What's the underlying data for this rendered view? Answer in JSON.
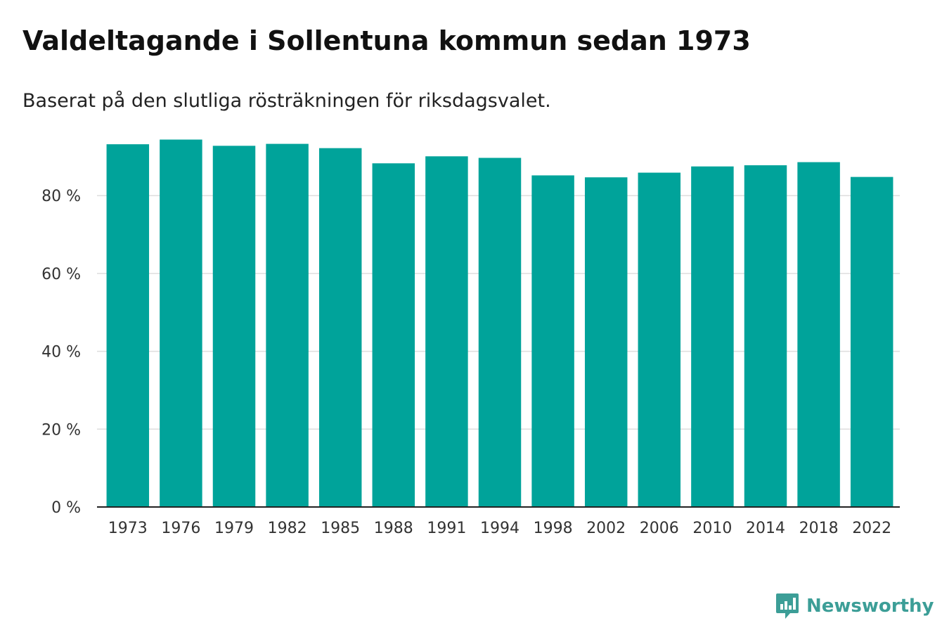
{
  "header": {
    "title": "Valdeltagande i Sollentuna kommun sedan 1973",
    "subtitle": "Baserat på den slutliga rösträkningen för riksdagsvalet."
  },
  "brand": {
    "name": "Newsworthy",
    "color": "#3c9e97",
    "icon": "newsworthy-logo-icon"
  },
  "chart_data": {
    "type": "bar",
    "title": "Valdeltagande i Sollentuna kommun sedan 1973",
    "subtitle": "Baserat på den slutliga rösträkningen för riksdagsvalet.",
    "categories": [
      "1973",
      "1976",
      "1979",
      "1982",
      "1985",
      "1988",
      "1991",
      "1994",
      "1998",
      "2002",
      "2006",
      "2010",
      "2014",
      "2018",
      "2022"
    ],
    "values": [
      93.2,
      94.4,
      92.8,
      93.3,
      92.2,
      88.3,
      90.1,
      89.7,
      85.2,
      84.7,
      85.9,
      87.5,
      87.8,
      88.6,
      84.8
    ],
    "y_ticks": [
      0,
      20,
      40,
      60,
      80
    ],
    "y_tick_labels": [
      "0 %",
      "20 %",
      "40 %",
      "60 %",
      "80 %"
    ],
    "ylim": [
      0,
      100
    ],
    "grid": true,
    "legend": "none",
    "bar_color": "#00a39a",
    "xlabel": "",
    "ylabel": ""
  }
}
